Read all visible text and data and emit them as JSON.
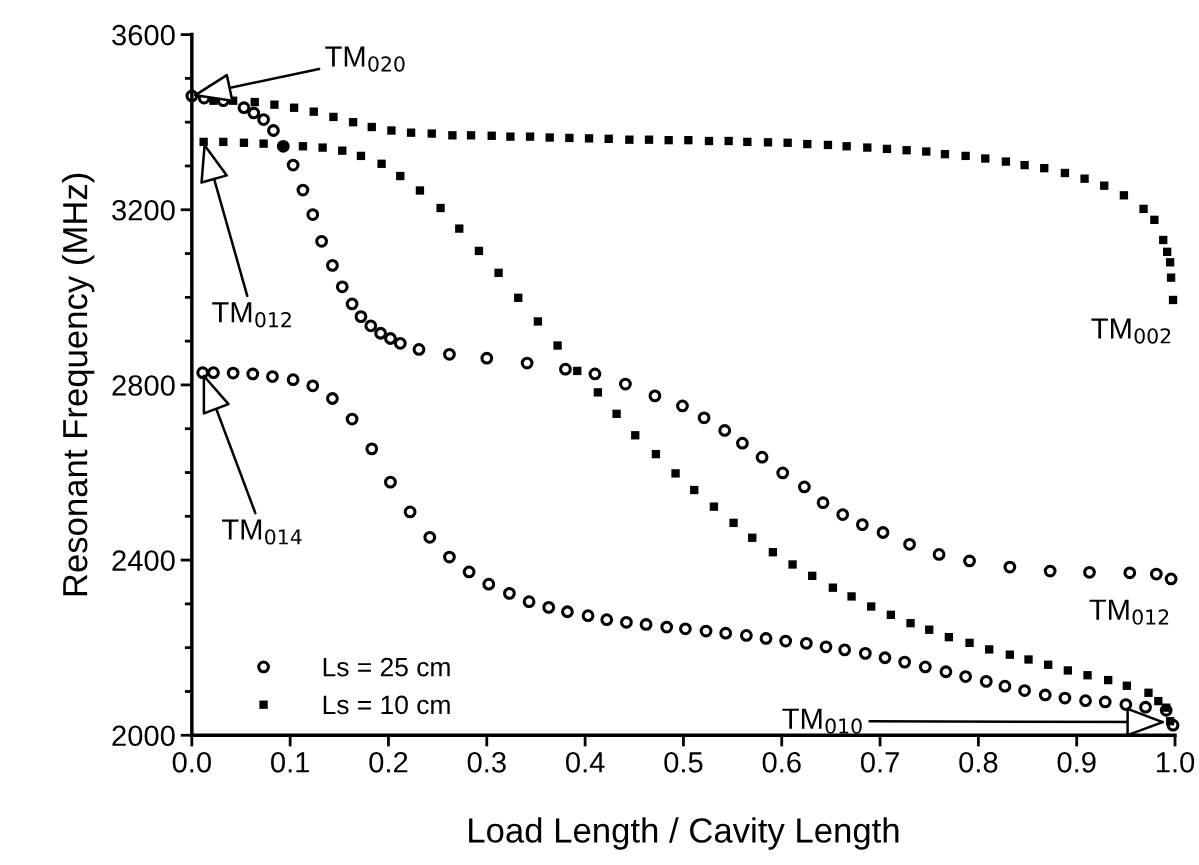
{
  "chart_data": {
    "type": "scatter",
    "xlabel": "Load Length / Cavity Length",
    "ylabel": "Resonant Frequency (MHz)",
    "xlim": [
      0.0,
      1.0
    ],
    "ylim": [
      2000,
      3600
    ],
    "xticks": [
      {
        "value": 0.0,
        "label": "0.0"
      },
      {
        "value": 0.1,
        "label": "0.1"
      },
      {
        "value": 0.2,
        "label": "0.2"
      },
      {
        "value": 0.3,
        "label": "0.3"
      },
      {
        "value": 0.4,
        "label": "0.4"
      },
      {
        "value": 0.5,
        "label": "0.5"
      },
      {
        "value": 0.6,
        "label": "0.6"
      },
      {
        "value": 0.7,
        "label": "0.7"
      },
      {
        "value": 0.8,
        "label": "0.8"
      },
      {
        "value": 0.9,
        "label": "0.9"
      },
      {
        "value": 1.0,
        "label": "1.0"
      }
    ],
    "yticks": [
      2000,
      {
        "value": 2100,
        "label": null
      },
      {
        "value": 2200,
        "label": null
      },
      {
        "value": 2300,
        "label": null
      },
      2400,
      {
        "value": 2500,
        "label": null
      },
      {
        "value": 2600,
        "label": null
      },
      {
        "value": 2700,
        "label": null
      },
      2800,
      {
        "value": 2900,
        "label": null
      },
      {
        "value": 3000,
        "label": null
      },
      {
        "value": 3100,
        "label": null
      },
      3200,
      {
        "value": 3300,
        "label": null
      },
      {
        "value": 3400,
        "label": null
      },
      {
        "value": 3500,
        "label": null
      },
      3600
    ],
    "legend": "bottom left",
    "grid": false,
    "series": [
      {
        "name": "Ls = 25 cm",
        "color": "#000000",
        "marker": "circle",
        "x": [
          0.0,
          0.0125,
          0.032,
          0.053,
          0.063,
          0.073,
          0.083,
          0.093,
          0.103,
          0.113,
          0.123,
          0.132,
          0.143,
          0.153,
          0.163,
          0.172,
          0.182,
          0.192,
          0.202,
          0.212,
          0.231,
          0.262,
          0.3,
          0.341,
          0.38,
          0.41,
          0.441,
          0.471,
          0.499,
          0.521,
          0.542,
          0.56,
          0.58,
          0.601,
          0.623,
          0.642,
          0.662,
          0.682,
          0.703,
          0.73,
          0.76,
          0.791,
          0.832,
          0.873,
          0.913,
          0.954,
          0.981,
          0.996,
          0.011,
          0.022,
          0.042,
          0.062,
          0.082,
          0.103,
          0.123,
          0.143,
          0.163,
          0.183,
          0.202,
          0.222,
          0.242,
          0.262,
          0.282,
          0.302,
          0.323,
          0.343,
          0.363,
          0.382,
          0.403,
          0.422,
          0.442,
          0.462,
          0.483,
          0.502,
          0.523,
          0.543,
          0.564,
          0.584,
          0.604,
          0.625,
          0.645,
          0.664,
          0.685,
          0.705,
          0.725,
          0.746,
          0.767,
          0.787,
          0.808,
          0.827,
          0.847,
          0.868,
          0.888,
          0.909,
          0.929,
          0.95,
          0.97,
          0.991,
          0.998
        ],
        "values": [
          3460,
          3455,
          3449,
          3433,
          3421,
          3406,
          3381,
          3345,
          3302,
          3245,
          3189,
          3128,
          3073,
          3024,
          2985,
          2956,
          2935,
          2918,
          2906,
          2895,
          2881,
          2870,
          2861,
          2850,
          2836,
          2825,
          2802,
          2775,
          2752,
          2725,
          2696,
          2667,
          2635,
          2599,
          2567,
          2531,
          2504,
          2481,
          2463,
          2436,
          2413,
          2398,
          2384,
          2375,
          2372,
          2371,
          2368,
          2357,
          2828,
          2828,
          2827,
          2825,
          2819,
          2812,
          2798,
          2769,
          2722,
          2654,
          2578,
          2510,
          2452,
          2407,
          2373,
          2345,
          2324,
          2305,
          2292,
          2282,
          2273,
          2264,
          2258,
          2253,
          2247,
          2243,
          2238,
          2233,
          2228,
          2221,
          2215,
          2210,
          2202,
          2195,
          2187,
          2177,
          2167,
          2156,
          2145,
          2134,
          2123,
          2112,
          2102,
          2092,
          2085,
          2079,
          2076,
          2070,
          2064,
          2057,
          2023
        ]
      },
      {
        "name": "Ls = 10 cm",
        "color": "#000000",
        "marker": "square",
        "x": [
          0.022,
          0.042,
          0.064,
          0.084,
          0.104,
          0.124,
          0.144,
          0.164,
          0.183,
          0.203,
          0.223,
          0.244,
          0.265,
          0.284,
          0.305,
          0.324,
          0.344,
          0.364,
          0.384,
          0.404,
          0.424,
          0.445,
          0.465,
          0.485,
          0.505,
          0.526,
          0.546,
          0.565,
          0.586,
          0.606,
          0.626,
          0.647,
          0.666,
          0.687,
          0.707,
          0.727,
          0.747,
          0.766,
          0.787,
          0.807,
          0.828,
          0.847,
          0.867,
          0.888,
          0.908,
          0.928,
          0.948,
          0.968,
          0.979,
          0.988,
          0.992,
          0.995,
          0.996,
          0.998,
          0.012,
          0.032,
          0.053,
          0.073,
          0.093,
          0.113,
          0.133,
          0.153,
          0.172,
          0.193,
          0.212,
          0.232,
          0.253,
          0.272,
          0.292,
          0.312,
          0.332,
          0.352,
          0.372,
          0.392,
          0.413,
          0.432,
          0.451,
          0.472,
          0.492,
          0.511,
          0.531,
          0.551,
          0.57,
          0.591,
          0.611,
          0.631,
          0.652,
          0.671,
          0.691,
          0.711,
          0.731,
          0.75,
          0.77,
          0.791,
          0.811,
          0.832,
          0.851,
          0.871,
          0.891,
          0.911,
          0.932,
          0.951,
          0.973,
          0.983,
          0.991,
          0.995
        ],
        "values": [
          3449,
          3449,
          3446,
          3440,
          3433,
          3424,
          3412,
          3400,
          3389,
          3381,
          3376,
          3374,
          3370,
          3370,
          3369,
          3367,
          3367,
          3365,
          3364,
          3363,
          3362,
          3360,
          3360,
          3359,
          3359,
          3357,
          3357,
          3355,
          3354,
          3353,
          3350,
          3348,
          3345,
          3342,
          3339,
          3336,
          3333,
          3327,
          3323,
          3317,
          3310,
          3302,
          3295,
          3284,
          3271,
          3255,
          3233,
          3202,
          3177,
          3131,
          3104,
          3080,
          3045,
          2994,
          3355,
          3355,
          3353,
          3351,
          3345,
          3345,
          3342,
          3335,
          3323,
          3305,
          3277,
          3244,
          3204,
          3157,
          3106,
          3056,
          2999,
          2945,
          2890,
          2832,
          2783,
          2734,
          2685,
          2642,
          2598,
          2560,
          2522,
          2485,
          2451,
          2418,
          2390,
          2364,
          2337,
          2317,
          2294,
          2275,
          2256,
          2241,
          2224,
          2211,
          2196,
          2184,
          2173,
          2161,
          2148,
          2137,
          2126,
          2113,
          2097,
          2078,
          2063,
          2032
        ]
      }
    ],
    "annotations": [
      {
        "text": "TM$_{020}$",
        "x": 0.0,
        "y": 3460
      },
      {
        "text": "TM$_{012}$",
        "x": 0.012,
        "y": 3355
      },
      {
        "text": "TM$_{014}$",
        "x": 0.011,
        "y": 2828
      },
      {
        "text": "TM$_{002}$",
        "x": 0.998,
        "y": 2994
      },
      {
        "text": "TM$_{012}$",
        "x": 0.996,
        "y": 2357
      },
      {
        "text": "TM$_{010}$",
        "x": 0.991,
        "y": 2030
      }
    ]
  }
}
